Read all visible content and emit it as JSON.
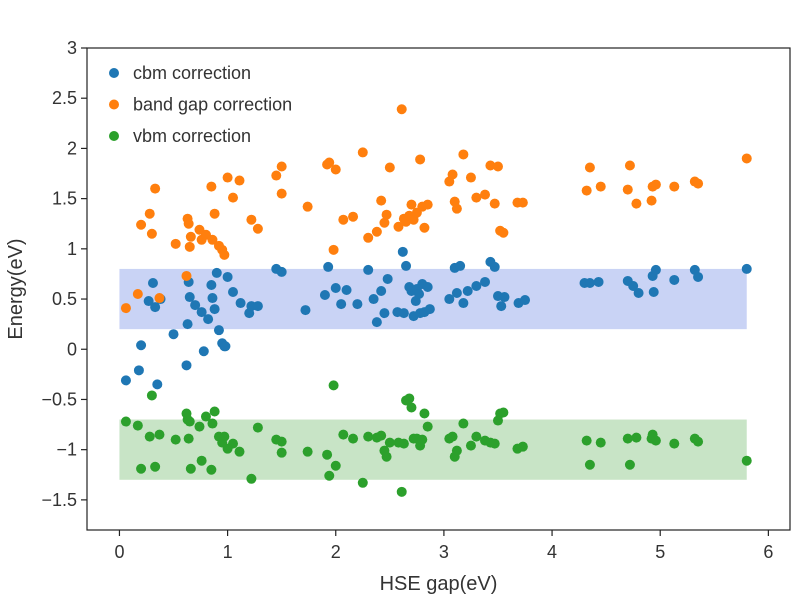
{
  "chart_data": {
    "type": "scatter",
    "xlabel": "HSE gap(eV)",
    "ylabel": "Energy(eV)",
    "xlim": [
      -0.3,
      6.2
    ],
    "ylim": [
      -1.8,
      3.0
    ],
    "xticks": [
      0,
      1,
      2,
      3,
      4,
      5,
      6
    ],
    "xtick_labels": [
      "0",
      "1",
      "2",
      "3",
      "4",
      "5",
      "6"
    ],
    "yticks": [
      -1.5,
      -1,
      -0.5,
      0,
      0.5,
      1,
      1.5,
      2,
      2.5,
      3
    ],
    "ytick_labels": [
      "−1.5",
      "−1",
      "−0.5",
      "0",
      "0.5",
      "1",
      "1.5",
      "2",
      "2.5",
      "3"
    ],
    "grid": false,
    "legend_position": "top-left",
    "bands": [
      {
        "x": [
          0,
          5.8
        ],
        "y": [
          0.2,
          0.8
        ],
        "color": "#c9d3f5"
      },
      {
        "x": [
          0,
          5.8
        ],
        "y": [
          -1.3,
          -0.7
        ],
        "color": "#c8e4c6"
      }
    ],
    "series": [
      {
        "name": "cbm correction",
        "color": "#1f77b4",
        "points": [
          [
            0.06,
            -0.31
          ],
          [
            0.18,
            -0.21
          ],
          [
            0.2,
            0.04
          ],
          [
            0.27,
            0.48
          ],
          [
            0.31,
            0.66
          ],
          [
            0.33,
            0.42
          ],
          [
            0.35,
            -0.35
          ],
          [
            0.38,
            0.5
          ],
          [
            0.5,
            0.15
          ],
          [
            0.62,
            -0.16
          ],
          [
            0.63,
            0.25
          ],
          [
            0.64,
            0.67
          ],
          [
            0.65,
            0.52
          ],
          [
            0.7,
            0.44
          ],
          [
            0.76,
            0.37
          ],
          [
            0.78,
            -0.02
          ],
          [
            0.82,
            0.3
          ],
          [
            0.85,
            0.64
          ],
          [
            0.86,
            0.51
          ],
          [
            0.88,
            0.4
          ],
          [
            0.9,
            0.76
          ],
          [
            0.92,
            0.19
          ],
          [
            0.95,
            0.06
          ],
          [
            0.97,
            0.03
          ],
          [
            0.98,
            0.03
          ],
          [
            1.0,
            0.72
          ],
          [
            1.05,
            0.57
          ],
          [
            1.12,
            0.46
          ],
          [
            1.2,
            0.36
          ],
          [
            1.22,
            0.43
          ],
          [
            1.28,
            0.43
          ],
          [
            1.45,
            0.8
          ],
          [
            1.5,
            0.77
          ],
          [
            1.72,
            0.39
          ],
          [
            1.9,
            0.54
          ],
          [
            1.93,
            0.82
          ],
          [
            2.0,
            0.61
          ],
          [
            2.05,
            0.45
          ],
          [
            2.1,
            0.59
          ],
          [
            2.2,
            0.45
          ],
          [
            2.3,
            0.79
          ],
          [
            2.35,
            0.5
          ],
          [
            2.38,
            0.27
          ],
          [
            2.42,
            0.58
          ],
          [
            2.45,
            0.36
          ],
          [
            2.48,
            0.7
          ],
          [
            2.57,
            0.37
          ],
          [
            2.62,
            0.97
          ],
          [
            2.63,
            0.36
          ],
          [
            2.65,
            0.83
          ],
          [
            2.68,
            0.62
          ],
          [
            2.7,
            0.58
          ],
          [
            2.72,
            0.33
          ],
          [
            2.74,
            0.48
          ],
          [
            2.75,
            0.6
          ],
          [
            2.77,
            0.55
          ],
          [
            2.78,
            0.36
          ],
          [
            2.8,
            0.65
          ],
          [
            2.82,
            0.37
          ],
          [
            2.85,
            0.62
          ],
          [
            2.87,
            0.4
          ],
          [
            3.05,
            0.5
          ],
          [
            3.1,
            0.81
          ],
          [
            3.12,
            0.56
          ],
          [
            3.15,
            0.83
          ],
          [
            3.18,
            0.46
          ],
          [
            3.22,
            0.58
          ],
          [
            3.3,
            0.63
          ],
          [
            3.38,
            0.67
          ],
          [
            3.43,
            0.87
          ],
          [
            3.47,
            0.82
          ],
          [
            3.5,
            0.53
          ],
          [
            3.53,
            0.43
          ],
          [
            3.56,
            0.52
          ],
          [
            3.69,
            0.46
          ],
          [
            3.75,
            0.49
          ],
          [
            4.3,
            0.66
          ],
          [
            4.35,
            0.66
          ],
          [
            4.43,
            0.67
          ],
          [
            4.7,
            0.68
          ],
          [
            4.75,
            0.63
          ],
          [
            4.8,
            0.56
          ],
          [
            4.93,
            0.73
          ],
          [
            4.94,
            0.57
          ],
          [
            4.96,
            0.79
          ],
          [
            5.13,
            0.69
          ],
          [
            5.32,
            0.79
          ],
          [
            5.35,
            0.72
          ],
          [
            5.8,
            0.8
          ]
        ]
      },
      {
        "name": "band gap correction",
        "color": "#ff7f0e",
        "points": [
          [
            0.06,
            0.41
          ],
          [
            0.17,
            0.55
          ],
          [
            0.2,
            1.24
          ],
          [
            0.28,
            1.35
          ],
          [
            0.3,
            1.15
          ],
          [
            0.33,
            1.6
          ],
          [
            0.37,
            0.51
          ],
          [
            0.52,
            1.05
          ],
          [
            0.62,
            0.73
          ],
          [
            0.63,
            1.3
          ],
          [
            0.64,
            1.25
          ],
          [
            0.65,
            1.02
          ],
          [
            0.66,
            1.12
          ],
          [
            0.74,
            1.19
          ],
          [
            0.76,
            1.09
          ],
          [
            0.8,
            1.14
          ],
          [
            0.85,
            1.62
          ],
          [
            0.86,
            1.09
          ],
          [
            0.88,
            1.35
          ],
          [
            0.92,
            1.03
          ],
          [
            0.95,
            0.99
          ],
          [
            0.97,
            0.94
          ],
          [
            1.0,
            1.71
          ],
          [
            1.05,
            1.51
          ],
          [
            1.11,
            1.68
          ],
          [
            1.22,
            1.29
          ],
          [
            1.28,
            1.2
          ],
          [
            1.45,
            1.73
          ],
          [
            1.5,
            1.82
          ],
          [
            1.5,
            1.55
          ],
          [
            1.74,
            1.42
          ],
          [
            1.92,
            1.84
          ],
          [
            1.94,
            1.86
          ],
          [
            1.98,
            0.99
          ],
          [
            2.0,
            1.79
          ],
          [
            2.07,
            1.29
          ],
          [
            2.16,
            1.32
          ],
          [
            2.25,
            1.96
          ],
          [
            2.3,
            1.11
          ],
          [
            2.38,
            1.17
          ],
          [
            2.42,
            1.48
          ],
          [
            2.45,
            1.26
          ],
          [
            2.47,
            1.34
          ],
          [
            2.5,
            1.81
          ],
          [
            2.58,
            1.22
          ],
          [
            2.61,
            2.39
          ],
          [
            2.63,
            1.3
          ],
          [
            2.65,
            1.27
          ],
          [
            2.68,
            1.33
          ],
          [
            2.7,
            1.44
          ],
          [
            2.72,
            1.29
          ],
          [
            2.75,
            1.36
          ],
          [
            2.78,
            1.89
          ],
          [
            2.8,
            1.42
          ],
          [
            2.82,
            1.21
          ],
          [
            2.85,
            1.44
          ],
          [
            3.05,
            1.67
          ],
          [
            3.08,
            1.74
          ],
          [
            3.1,
            1.47
          ],
          [
            3.12,
            1.4
          ],
          [
            3.18,
            1.94
          ],
          [
            3.25,
            1.71
          ],
          [
            3.3,
            1.51
          ],
          [
            3.38,
            1.54
          ],
          [
            3.43,
            1.83
          ],
          [
            3.47,
            1.45
          ],
          [
            3.5,
            1.82
          ],
          [
            3.52,
            1.18
          ],
          [
            3.55,
            1.16
          ],
          [
            3.68,
            1.46
          ],
          [
            3.73,
            1.46
          ],
          [
            4.32,
            1.58
          ],
          [
            4.35,
            1.81
          ],
          [
            4.45,
            1.62
          ],
          [
            4.7,
            1.59
          ],
          [
            4.72,
            1.83
          ],
          [
            4.78,
            1.45
          ],
          [
            4.92,
            1.48
          ],
          [
            4.93,
            1.62
          ],
          [
            4.96,
            1.64
          ],
          [
            5.13,
            1.62
          ],
          [
            5.32,
            1.67
          ],
          [
            5.35,
            1.65
          ],
          [
            5.8,
            1.9
          ]
        ]
      },
      {
        "name": "vbm correction",
        "color": "#2ca02c",
        "points": [
          [
            0.06,
            -0.72
          ],
          [
            0.17,
            -0.76
          ],
          [
            0.2,
            -1.19
          ],
          [
            0.28,
            -0.87
          ],
          [
            0.3,
            -0.46
          ],
          [
            0.33,
            -1.17
          ],
          [
            0.37,
            -0.85
          ],
          [
            0.52,
            -0.9
          ],
          [
            0.62,
            -0.64
          ],
          [
            0.63,
            -0.7
          ],
          [
            0.64,
            -0.89
          ],
          [
            0.65,
            -0.72
          ],
          [
            0.66,
            -1.19
          ],
          [
            0.74,
            -0.77
          ],
          [
            0.76,
            -1.11
          ],
          [
            0.8,
            -0.67
          ],
          [
            0.85,
            -1.2
          ],
          [
            0.86,
            -0.74
          ],
          [
            0.88,
            -0.62
          ],
          [
            0.92,
            -0.87
          ],
          [
            0.95,
            -0.93
          ],
          [
            0.97,
            -0.87
          ],
          [
            1.0,
            -0.99
          ],
          [
            1.05,
            -0.94
          ],
          [
            1.11,
            -1.02
          ],
          [
            1.22,
            -1.29
          ],
          [
            1.28,
            -0.78
          ],
          [
            1.45,
            -0.9
          ],
          [
            1.5,
            -0.92
          ],
          [
            1.5,
            -1.03
          ],
          [
            1.74,
            -1.02
          ],
          [
            1.92,
            -1.05
          ],
          [
            1.94,
            -1.26
          ],
          [
            1.98,
            -0.36
          ],
          [
            2.0,
            -1.16
          ],
          [
            2.07,
            -0.85
          ],
          [
            2.16,
            -0.89
          ],
          [
            2.25,
            -1.33
          ],
          [
            2.3,
            -0.87
          ],
          [
            2.38,
            -0.88
          ],
          [
            2.42,
            -0.86
          ],
          [
            2.45,
            -1.01
          ],
          [
            2.47,
            -1.07
          ],
          [
            2.5,
            -0.93
          ],
          [
            2.58,
            -0.93
          ],
          [
            2.61,
            -1.42
          ],
          [
            2.63,
            -0.94
          ],
          [
            2.65,
            -0.51
          ],
          [
            2.68,
            -0.49
          ],
          [
            2.7,
            -0.58
          ],
          [
            2.72,
            -0.89
          ],
          [
            2.75,
            -0.89
          ],
          [
            2.78,
            -0.96
          ],
          [
            2.8,
            -0.9
          ],
          [
            2.82,
            -0.64
          ],
          [
            2.85,
            -0.77
          ],
          [
            3.05,
            -0.89
          ],
          [
            3.08,
            -0.87
          ],
          [
            3.1,
            -1.07
          ],
          [
            3.12,
            -1.01
          ],
          [
            3.18,
            -0.74
          ],
          [
            3.25,
            -0.96
          ],
          [
            3.3,
            -0.87
          ],
          [
            3.38,
            -0.91
          ],
          [
            3.43,
            -0.93
          ],
          [
            3.47,
            -0.94
          ],
          [
            3.5,
            -0.71
          ],
          [
            3.52,
            -0.64
          ],
          [
            3.55,
            -0.63
          ],
          [
            3.68,
            -0.99
          ],
          [
            3.73,
            -0.97
          ],
          [
            4.32,
            -0.91
          ],
          [
            4.35,
            -1.15
          ],
          [
            4.45,
            -0.93
          ],
          [
            4.7,
            -0.89
          ],
          [
            4.72,
            -1.15
          ],
          [
            4.78,
            -0.88
          ],
          [
            4.92,
            -0.89
          ],
          [
            4.93,
            -0.85
          ],
          [
            4.96,
            -0.91
          ],
          [
            5.13,
            -0.94
          ],
          [
            5.32,
            -0.89
          ],
          [
            5.35,
            -0.92
          ],
          [
            5.8,
            -1.11
          ]
        ]
      }
    ]
  }
}
